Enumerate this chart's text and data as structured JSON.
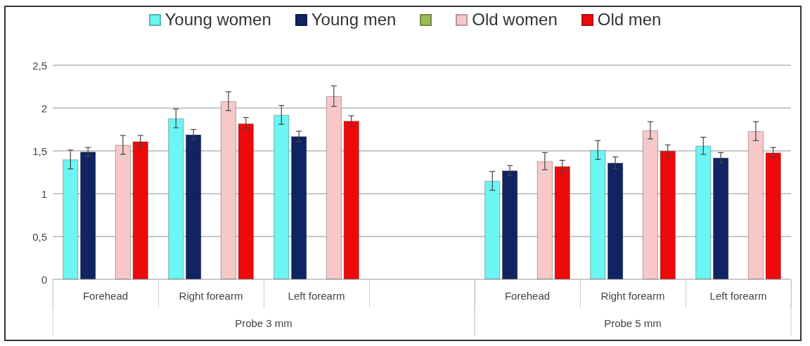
{
  "chart_data": {
    "type": "bar",
    "categories": [
      "Forehead",
      "Right forearm",
      "Left forearm",
      null,
      "Forehead",
      "Right forearm",
      "Left forearm"
    ],
    "series": [
      {
        "name": "Young women",
        "color": "#6cf5f2",
        "values": [
          1.4,
          1.88,
          1.92,
          null,
          1.15,
          1.51,
          1.56
        ],
        "errors": [
          0.11,
          0.11,
          0.11,
          null,
          0.11,
          0.11,
          0.1
        ]
      },
      {
        "name": "Young men",
        "color": "#0f2461",
        "values": [
          1.49,
          1.69,
          1.67,
          null,
          1.27,
          1.36,
          1.42
        ],
        "errors": [
          0.05,
          0.06,
          0.06,
          null,
          0.06,
          0.07,
          0.06
        ]
      },
      {
        "color": "#9bbb59",
        "values": [
          null,
          null,
          null,
          null,
          null,
          null,
          null
        ]
      },
      {
        "name": "Old women",
        "color": "#f8c8c8",
        "values": [
          1.57,
          2.08,
          2.14,
          null,
          1.38,
          1.74,
          1.73
        ],
        "errors": [
          0.11,
          0.11,
          0.12,
          null,
          0.1,
          0.1,
          0.11
        ]
      },
      {
        "name": "Old men",
        "color": "#ee0a0a",
        "values": [
          1.61,
          1.82,
          1.85,
          null,
          1.32,
          1.5,
          1.48
        ],
        "errors": [
          0.07,
          0.07,
          0.06,
          null,
          0.07,
          0.07,
          0.06
        ]
      }
    ],
    "ylim": [
      0,
      2.5
    ],
    "yticks": [
      0,
      {
        "value": 0.5,
        "label": "0,5"
      },
      1,
      {
        "value": 1.5,
        "label": "1,5"
      },
      2,
      {
        "value": 2.5,
        "label": "2,5"
      }
    ],
    "grid": "y",
    "legend": "top",
    "annotations": [
      "Probe 3 mm",
      "Probe 5 mm"
    ]
  }
}
